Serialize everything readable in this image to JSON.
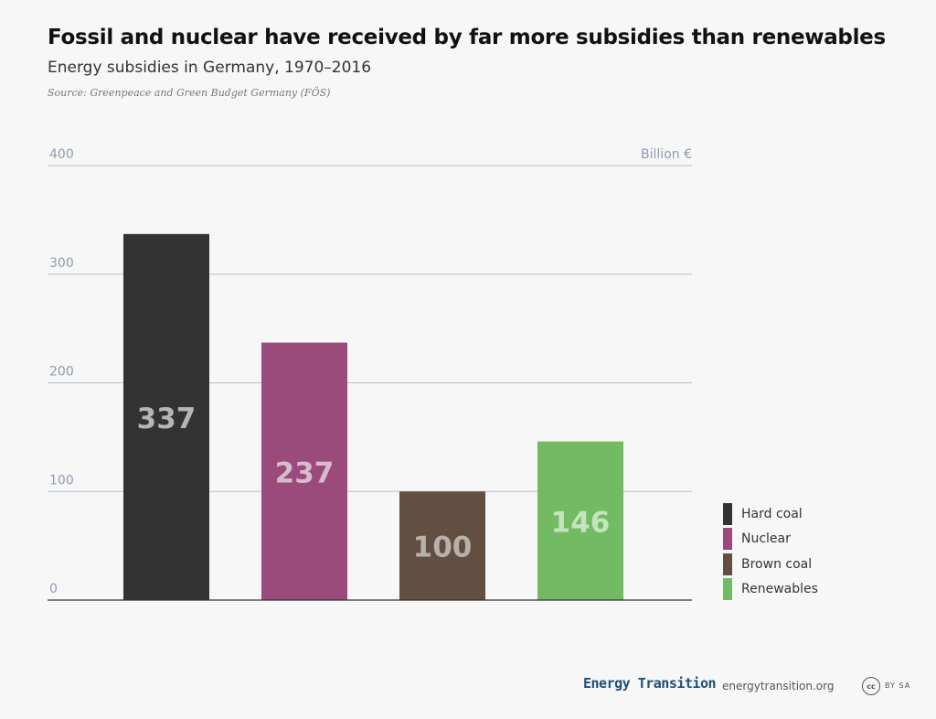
{
  "chart_data": {
    "type": "bar",
    "title": "Fossil and nuclear have received by far more subsidies than renewables",
    "subtitle": "Energy subsidies in Germany, 1970–2016",
    "source": "Source: Greenpeace and Green Budget Germany (FÖS)",
    "unit_label": "Billion €",
    "categories": [
      "Hard coal",
      "Nuclear",
      "Brown coal",
      "Renewables"
    ],
    "values": [
      337,
      237,
      100,
      146
    ],
    "colors": [
      "#333333",
      "#9a4b7c",
      "#634f42",
      "#72bb63"
    ],
    "label_colors": [
      "#b5b5b5",
      "#d7bccc",
      "#b8b0aa",
      "#c5e4bd"
    ],
    "ylim": [
      0,
      400
    ],
    "yticks": [
      0,
      100,
      200,
      300,
      400
    ],
    "grid": true,
    "legend_position": "right-bottom"
  },
  "footer": {
    "brand": "Energy Transition",
    "url": "energytransition.org",
    "license_badge": "cc",
    "license_text": "BY SA"
  }
}
